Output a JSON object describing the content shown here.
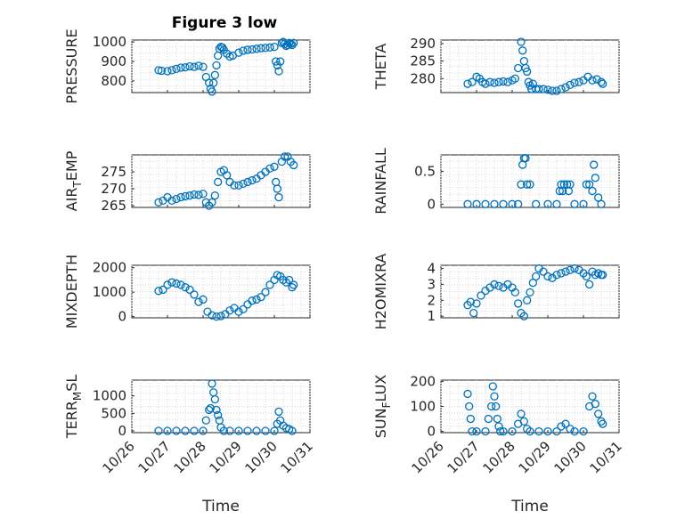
{
  "figure": {
    "title": "Figure 3 low",
    "x_axis_label": "Time",
    "x_tick_labels": [
      "10/26",
      "10/27",
      "10/28",
      "10/29",
      "10/30",
      "10/31"
    ]
  },
  "colors": {
    "marker": "#0072BD",
    "axis": "#262626",
    "grid": "#d9d9d9"
  },
  "chart_data": [
    {
      "type": "scatter",
      "ylabel": "PRESSURE",
      "title": "Figure 3 low",
      "xlabel": "",
      "ylim": [
        740,
        1010
      ],
      "yticks": [
        800,
        900,
        1000
      ],
      "x": [
        "10/26 18:00",
        "10/26 20:00",
        "10/27 00:00",
        "10/27 03:00",
        "10/27 06:00",
        "10/27 09:00",
        "10/27 12:00",
        "10/27 15:00",
        "10/27 18:00",
        "10/27 21:00",
        "10/28 00:00",
        "10/28 02:00",
        "10/28 04:00",
        "10/28 05:00",
        "10/28 06:00",
        "10/28 07:00",
        "10/28 08:00",
        "10/28 09:00",
        "10/28 10:00",
        "10/28 11:00",
        "10/28 12:00",
        "10/28 13:00",
        "10/28 14:00",
        "10/28 16:00",
        "10/28 18:00",
        "10/28 20:00",
        "10/29 00:00",
        "10/29 03:00",
        "10/29 06:00",
        "10/29 09:00",
        "10/29 12:00",
        "10/29 15:00",
        "10/29 18:00",
        "10/29 21:00",
        "10/30 00:00",
        "10/30 01:00",
        "10/30 02:00",
        "10/30 03:00",
        "10/30 04:00",
        "10/30 05:00",
        "10/30 06:00",
        "10/30 07:00",
        "10/30 08:00",
        "10/30 09:00",
        "10/30 10:00",
        "10/30 11:00",
        "10/30 12:00",
        "10/30 13:00"
      ],
      "y": [
        855,
        852,
        850,
        855,
        862,
        868,
        870,
        875,
        872,
        878,
        872,
        820,
        790,
        760,
        745,
        790,
        830,
        880,
        930,
        965,
        975,
        972,
        960,
        940,
        925,
        930,
        945,
        955,
        960,
        962,
        965,
        968,
        970,
        972,
        975,
        900,
        880,
        850,
        900,
        995,
        1000,
        990,
        980,
        985,
        995,
        990,
        985,
        995
      ]
    },
    {
      "type": "scatter",
      "ylabel": "THETA",
      "title": "",
      "xlabel": "",
      "ylim": [
        276,
        291
      ],
      "yticks": [
        280,
        285,
        290
      ],
      "x": [
        "10/26 18:00",
        "10/26 21:00",
        "10/27 00:00",
        "10/27 02:00",
        "10/27 04:00",
        "10/27 06:00",
        "10/27 09:00",
        "10/27 12:00",
        "10/27 15:00",
        "10/27 18:00",
        "10/27 21:00",
        "10/28 00:00",
        "10/28 02:00",
        "10/28 04:00",
        "10/28 06:00",
        "10/28 07:00",
        "10/28 08:00",
        "10/28 09:00",
        "10/28 10:00",
        "10/28 11:00",
        "10/28 12:00",
        "10/28 13:00",
        "10/28 14:00",
        "10/28 16:00",
        "10/28 18:00",
        "10/28 21:00",
        "10/29 00:00",
        "10/29 03:00",
        "10/29 06:00",
        "10/29 09:00",
        "10/29 12:00",
        "10/29 15:00",
        "10/29 18:00",
        "10/29 21:00",
        "10/30 00:00",
        "10/30 03:00",
        "10/30 06:00",
        "10/30 09:00",
        "10/30 12:00",
        "10/30 13:00"
      ],
      "y": [
        278.5,
        279,
        280.5,
        280,
        279,
        278.5,
        279,
        278.8,
        279,
        279.2,
        279,
        279.5,
        280,
        283,
        290.5,
        288,
        285,
        283,
        282,
        279,
        278,
        277,
        278.5,
        277,
        277,
        277,
        276.8,
        276.5,
        276.5,
        277,
        277.5,
        278.2,
        278.8,
        279,
        279.5,
        280.5,
        279.5,
        279.8,
        279,
        278.5
      ]
    },
    {
      "type": "scatter",
      "ylabel": "AIR_TEMP",
      "title": "",
      "xlabel": "",
      "ylim": [
        264.5,
        280
      ],
      "yticks": [
        265,
        270,
        275
      ],
      "x": [
        "10/26 18:00",
        "10/26 21:00",
        "10/27 00:00",
        "10/27 03:00",
        "10/27 06:00",
        "10/27 09:00",
        "10/27 12:00",
        "10/27 15:00",
        "10/27 18:00",
        "10/27 21:00",
        "10/28 00:00",
        "10/28 02:00",
        "10/28 04:00",
        "10/28 06:00",
        "10/28 08:00",
        "10/28 10:00",
        "10/28 12:00",
        "10/28 14:00",
        "10/28 16:00",
        "10/28 18:00",
        "10/28 21:00",
        "10/29 00:00",
        "10/29 03:00",
        "10/29 06:00",
        "10/29 09:00",
        "10/29 12:00",
        "10/29 15:00",
        "10/29 18:00",
        "10/29 21:00",
        "10/30 00:00",
        "10/30 01:00",
        "10/30 02:00",
        "10/30 03:00",
        "10/30 05:00",
        "10/30 07:00",
        "10/30 09:00",
        "10/30 11:00",
        "10/30 13:00"
      ],
      "y": [
        266,
        266.5,
        267.5,
        266.5,
        267,
        267.5,
        267.8,
        268,
        268.3,
        268.2,
        268.5,
        266,
        265,
        266,
        268,
        272,
        275,
        275.5,
        274,
        272,
        271,
        271,
        271.5,
        272,
        272.5,
        273,
        274,
        275,
        276,
        276.5,
        272,
        270,
        267.5,
        278,
        279.5,
        279.5,
        278,
        277
      ]
    },
    {
      "type": "scatter",
      "ylabel": "RAINFALL",
      "title": "",
      "xlabel": "",
      "ylim": [
        -0.05,
        0.75
      ],
      "yticks": [
        0,
        0.5
      ],
      "x": [
        "10/26 18:00",
        "10/27 00:00",
        "10/27 06:00",
        "10/27 12:00",
        "10/27 18:00",
        "10/28 00:00",
        "10/28 04:00",
        "10/28 06:00",
        "10/28 07:00",
        "10/28 08:00",
        "10/28 09:00",
        "10/28 10:00",
        "10/28 12:00",
        "10/28 16:00",
        "10/29 00:00",
        "10/29 06:00",
        "10/29 08:00",
        "10/29 09:00",
        "10/29 10:00",
        "10/29 11:00",
        "10/29 13:00",
        "10/29 14:00",
        "10/29 15:00",
        "10/29 18:00",
        "10/30 00:00",
        "10/30 02:00",
        "10/30 04:00",
        "10/30 06:00",
        "10/30 07:00",
        "10/30 08:00",
        "10/30 10:00",
        "10/30 12:00"
      ],
      "y": [
        0,
        0,
        0,
        0,
        0,
        0,
        0,
        0.3,
        0.6,
        0.7,
        0.7,
        0.3,
        0.3,
        0,
        0,
        0,
        0.2,
        0.3,
        0.2,
        0.3,
        0.3,
        0.2,
        0.3,
        0,
        0,
        0.3,
        0.3,
        0.2,
        0.6,
        0.4,
        0.1,
        0
      ]
    },
    {
      "type": "scatter",
      "ylabel": "MIXDEPTH",
      "title": "",
      "xlabel": "",
      "ylim": [
        -50,
        2100
      ],
      "yticks": [
        0,
        1000,
        2000
      ],
      "x": [
        "10/26 18:00",
        "10/26 21:00",
        "10/27 00:00",
        "10/27 03:00",
        "10/27 06:00",
        "10/27 09:00",
        "10/27 12:00",
        "10/27 15:00",
        "10/27 18:00",
        "10/27 21:00",
        "10/28 00:00",
        "10/28 03:00",
        "10/28 06:00",
        "10/28 09:00",
        "10/28 12:00",
        "10/28 15:00",
        "10/28 18:00",
        "10/28 21:00",
        "10/29 00:00",
        "10/29 03:00",
        "10/29 06:00",
        "10/29 09:00",
        "10/29 12:00",
        "10/29 15:00",
        "10/29 18:00",
        "10/29 21:00",
        "10/30 00:00",
        "10/30 02:00",
        "10/30 04:00",
        "10/30 06:00",
        "10/30 08:00",
        "10/30 10:00",
        "10/30 12:00",
        "10/30 13:00"
      ],
      "y": [
        1050,
        1100,
        1300,
        1400,
        1350,
        1300,
        1200,
        1100,
        900,
        600,
        700,
        200,
        50,
        0,
        20,
        100,
        250,
        350,
        200,
        300,
        500,
        650,
        700,
        800,
        1000,
        1300,
        1500,
        1700,
        1650,
        1500,
        1400,
        1500,
        1200,
        1300
      ]
    },
    {
      "type": "scatter",
      "ylabel": "H2OMIXRA",
      "title": "",
      "xlabel": "",
      "ylim": [
        0.9,
        4.2
      ],
      "yticks": [
        1,
        2,
        3,
        4
      ],
      "x": [
        "10/26 18:00",
        "10/26 20:00",
        "10/26 22:00",
        "10/27 00:00",
        "10/27 03:00",
        "10/27 06:00",
        "10/27 09:00",
        "10/27 12:00",
        "10/27 15:00",
        "10/27 18:00",
        "10/27 21:00",
        "10/28 00:00",
        "10/28 02:00",
        "10/28 04:00",
        "10/28 06:00",
        "10/28 08:00",
        "10/28 10:00",
        "10/28 12:00",
        "10/28 14:00",
        "10/28 16:00",
        "10/28 18:00",
        "10/28 21:00",
        "10/29 00:00",
        "10/29 03:00",
        "10/29 06:00",
        "10/29 09:00",
        "10/29 12:00",
        "10/29 15:00",
        "10/29 18:00",
        "10/29 21:00",
        "10/30 00:00",
        "10/30 02:00",
        "10/30 04:00",
        "10/30 06:00",
        "10/30 08:00",
        "10/30 10:00",
        "10/30 12:00",
        "10/30 13:00"
      ],
      "y": [
        1.7,
        1.9,
        1.2,
        1.8,
        2.3,
        2.6,
        2.8,
        3.0,
        2.9,
        2.8,
        3.0,
        2.8,
        2.5,
        1.8,
        1.2,
        1.0,
        2.0,
        2.5,
        3.1,
        3.5,
        4.0,
        3.8,
        3.5,
        3.4,
        3.6,
        3.7,
        3.8,
        3.9,
        4.0,
        3.9,
        3.7,
        3.5,
        3.0,
        3.8,
        3.6,
        3.7,
        3.6,
        3.6
      ]
    },
    {
      "type": "scatter",
      "ylabel": "TERR_MSL",
      "title": "",
      "xlabel": "Time",
      "ylim": [
        -50,
        1450
      ],
      "yticks": [
        0,
        500,
        1000
      ],
      "xticklabels": [
        "10/26",
        "10/27",
        "10/28",
        "10/29",
        "10/30",
        "10/31"
      ],
      "x": [
        "10/26 18:00",
        "10/27 00:00",
        "10/27 06:00",
        "10/27 12:00",
        "10/27 18:00",
        "10/28 00:00",
        "10/28 02:00",
        "10/28 04:00",
        "10/28 05:00",
        "10/28 06:00",
        "10/28 07:00",
        "10/28 08:00",
        "10/28 09:00",
        "10/28 10:00",
        "10/28 11:00",
        "10/28 12:00",
        "10/28 14:00",
        "10/28 18:00",
        "10/29 00:00",
        "10/29 06:00",
        "10/29 12:00",
        "10/29 18:00",
        "10/30 00:00",
        "10/30 02:00",
        "10/30 03:00",
        "10/30 04:00",
        "10/30 06:00",
        "10/30 08:00",
        "10/30 10:00",
        "10/30 12:00"
      ],
      "y": [
        0,
        0,
        0,
        0,
        0,
        0,
        300,
        600,
        650,
        1350,
        1100,
        900,
        600,
        450,
        300,
        100,
        0,
        0,
        0,
        0,
        0,
        0,
        0,
        200,
        550,
        300,
        150,
        80,
        50,
        0
      ]
    },
    {
      "type": "scatter",
      "ylabel": "SUN_FLUX",
      "title": "",
      "xlabel": "Time",
      "ylim": [
        -5,
        205
      ],
      "yticks": [
        0,
        100,
        200
      ],
      "xticklabels": [
        "10/26",
        "10/27",
        "10/28",
        "10/29",
        "10/30",
        "10/31"
      ],
      "x": [
        "10/26 18:00",
        "10/26 19:00",
        "10/26 20:00",
        "10/26 21:00",
        "10/27 00:00",
        "10/27 06:00",
        "10/27 08:00",
        "10/27 10:00",
        "10/27 11:00",
        "10/27 12:00",
        "10/27 13:00",
        "10/27 14:00",
        "10/27 15:00",
        "10/27 16:00",
        "10/27 18:00",
        "10/28 00:00",
        "10/28 04:00",
        "10/28 06:00",
        "10/28 08:00",
        "10/28 10:00",
        "10/28 12:00",
        "10/28 18:00",
        "10/29 00:00",
        "10/29 06:00",
        "10/29 09:00",
        "10/29 12:00",
        "10/29 15:00",
        "10/29 18:00",
        "10/30 00:00",
        "10/30 04:00",
        "10/30 06:00",
        "10/30 08:00",
        "10/30 10:00",
        "10/30 12:00",
        "10/30 13:00"
      ],
      "y": [
        150,
        100,
        50,
        0,
        0,
        0,
        50,
        100,
        180,
        140,
        100,
        50,
        20,
        0,
        0,
        0,
        30,
        70,
        40,
        10,
        0,
        0,
        0,
        0,
        20,
        30,
        10,
        0,
        0,
        100,
        140,
        110,
        70,
        40,
        30
      ]
    }
  ]
}
